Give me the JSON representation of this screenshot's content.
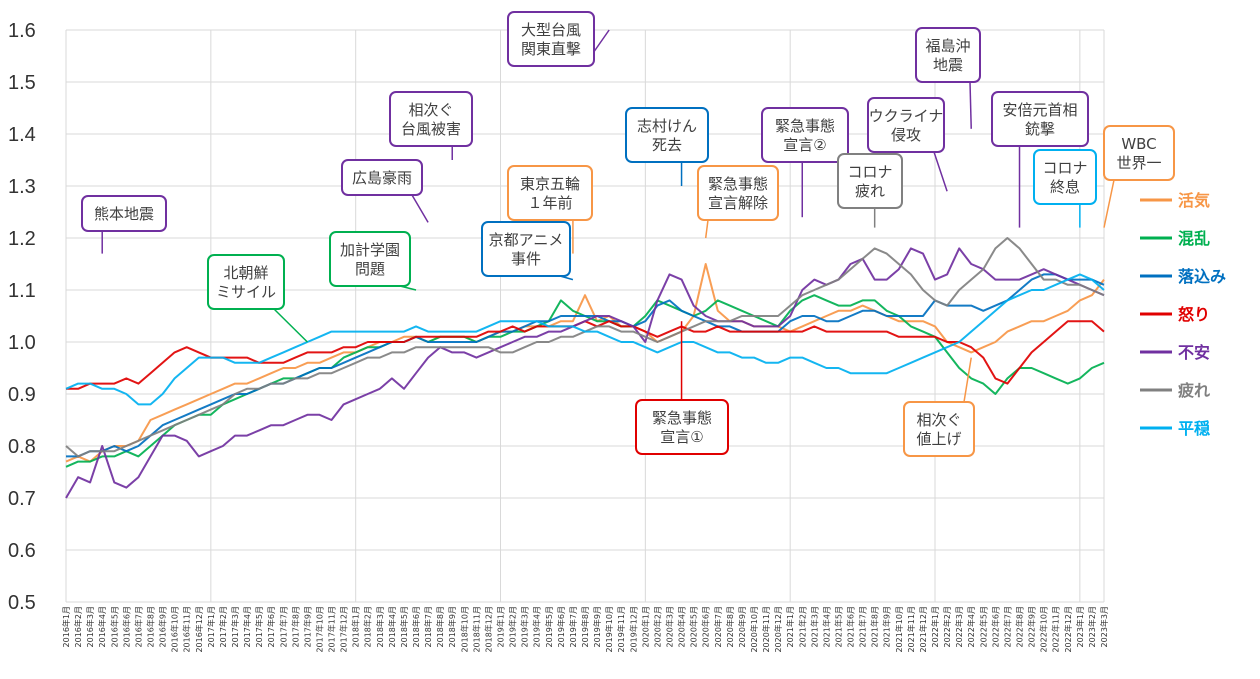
{
  "chart_data": {
    "type": "line",
    "title": "",
    "xlabel": "",
    "ylabel": "",
    "ylim": [
      0.5,
      1.6
    ],
    "yticks": [
      "0.5",
      "0.6",
      "0.7",
      "0.8",
      "0.9",
      "1.0",
      "1.1",
      "1.2",
      "1.3",
      "1.4",
      "1.5",
      "1.6"
    ],
    "grid": true,
    "legend_position": "right",
    "x_labels": [
      "2016年1月",
      "2016年2月",
      "2016年3月",
      "2016年4月",
      "2016年5月",
      "2016年6月",
      "2016年7月",
      "2016年8月",
      "2016年9月",
      "2016年10月",
      "2016年11月",
      "2016年12月",
      "2017年1月",
      "2017年2月",
      "2017年3月",
      "2017年4月",
      "2017年5月",
      "2017年6月",
      "2017年7月",
      "2017年8月",
      "2017年9月",
      "2017年10月",
      "2017年11月",
      "2017年12月",
      "2018年1月",
      "2018年2月",
      "2018年3月",
      "2018年4月",
      "2018年5月",
      "2018年6月",
      "2018年7月",
      "2018年8月",
      "2018年9月",
      "2018年10月",
      "2018年11月",
      "2018年12月",
      "2019年1月",
      "2019年2月",
      "2019年3月",
      "2019年4月",
      "2019年5月",
      "2019年6月",
      "2019年7月",
      "2019年8月",
      "2019年9月",
      "2019年10月",
      "2019年11月",
      "2019年12月",
      "2020年1月",
      "2020年2月",
      "2020年3月",
      "2020年4月",
      "2020年5月",
      "2020年6月",
      "2020年7月",
      "2020年8月",
      "2020年9月",
      "2020年10月",
      "2020年11月",
      "2020年12月",
      "2021年1月",
      "2021年2月",
      "2021年3月",
      "2021年4月",
      "2021年5月",
      "2021年6月",
      "2021年7月",
      "2021年8月",
      "2021年9月",
      "2021年10月",
      "2021年11月",
      "2021年12月",
      "2022年1月",
      "2022年2月",
      "2022年3月",
      "2022年4月",
      "2022年5月",
      "2022年6月",
      "2022年7月",
      "2022年8月",
      "2022年9月",
      "2022年10月",
      "2022年11月",
      "2022年12月",
      "2023年1月",
      "2023年2月",
      "2023年3月"
    ],
    "series": [
      {
        "name": "活気",
        "color": "#f79646",
        "values": [
          0.77,
          0.78,
          0.77,
          0.79,
          0.8,
          0.8,
          0.81,
          0.85,
          0.86,
          0.87,
          0.88,
          0.89,
          0.9,
          0.91,
          0.92,
          0.92,
          0.93,
          0.94,
          0.95,
          0.95,
          0.96,
          0.96,
          0.97,
          0.98,
          0.98,
          0.99,
          1.0,
          1.0,
          1.01,
          1.01,
          1.0,
          1.01,
          1.01,
          1.01,
          1.0,
          1.01,
          1.02,
          1.02,
          1.03,
          1.03,
          1.03,
          1.04,
          1.04,
          1.09,
          1.04,
          1.05,
          1.03,
          1.03,
          1.02,
          1.0,
          1.01,
          1.02,
          1.05,
          1.15,
          1.06,
          1.04,
          1.04,
          1.03,
          1.03,
          1.03,
          1.02,
          1.03,
          1.04,
          1.05,
          1.06,
          1.06,
          1.07,
          1.06,
          1.05,
          1.04,
          1.04,
          1.04,
          1.03,
          1.0,
          0.99,
          0.98,
          0.99,
          1.0,
          1.02,
          1.03,
          1.04,
          1.04,
          1.05,
          1.06,
          1.08,
          1.09,
          1.12
        ]
      },
      {
        "name": "混乱",
        "color": "#00b050",
        "values": [
          0.76,
          0.77,
          0.77,
          0.78,
          0.78,
          0.79,
          0.78,
          0.8,
          0.82,
          0.84,
          0.85,
          0.86,
          0.86,
          0.88,
          0.89,
          0.9,
          0.91,
          0.92,
          0.93,
          0.93,
          0.94,
          0.95,
          0.95,
          0.97,
          0.98,
          0.99,
          0.99,
          1.0,
          1.0,
          1.01,
          1.0,
          1.01,
          1.01,
          1.01,
          1.0,
          1.01,
          1.01,
          1.02,
          1.02,
          1.03,
          1.04,
          1.08,
          1.06,
          1.05,
          1.04,
          1.04,
          1.03,
          1.03,
          1.05,
          1.08,
          1.07,
          1.06,
          1.05,
          1.06,
          1.08,
          1.07,
          1.06,
          1.05,
          1.04,
          1.03,
          1.06,
          1.08,
          1.09,
          1.08,
          1.07,
          1.07,
          1.08,
          1.08,
          1.06,
          1.05,
          1.03,
          1.02,
          1.01,
          0.98,
          0.95,
          0.93,
          0.92,
          0.9,
          0.93,
          0.95,
          0.95,
          0.94,
          0.93,
          0.92,
          0.93,
          0.95,
          0.96
        ]
      },
      {
        "name": "落込み",
        "color": "#0070c0",
        "values": [
          0.78,
          0.78,
          0.79,
          0.79,
          0.8,
          0.79,
          0.8,
          0.82,
          0.84,
          0.85,
          0.86,
          0.87,
          0.88,
          0.89,
          0.9,
          0.9,
          0.91,
          0.92,
          0.92,
          0.93,
          0.94,
          0.95,
          0.95,
          0.96,
          0.97,
          0.98,
          0.99,
          1.0,
          1.0,
          1.01,
          1.0,
          1.0,
          1.0,
          1.0,
          1.0,
          1.01,
          1.02,
          1.02,
          1.03,
          1.04,
          1.04,
          1.05,
          1.05,
          1.05,
          1.05,
          1.04,
          1.04,
          1.03,
          1.04,
          1.07,
          1.08,
          1.06,
          1.05,
          1.04,
          1.03,
          1.03,
          1.02,
          1.02,
          1.02,
          1.02,
          1.04,
          1.05,
          1.05,
          1.04,
          1.04,
          1.05,
          1.06,
          1.06,
          1.05,
          1.05,
          1.05,
          1.05,
          1.08,
          1.07,
          1.07,
          1.07,
          1.06,
          1.07,
          1.08,
          1.1,
          1.12,
          1.13,
          1.13,
          1.12,
          1.12,
          1.12,
          1.11
        ]
      },
      {
        "name": "怒り",
        "color": "#e00000",
        "values": [
          0.91,
          0.91,
          0.92,
          0.92,
          0.92,
          0.93,
          0.92,
          0.94,
          0.96,
          0.98,
          0.99,
          0.98,
          0.97,
          0.97,
          0.97,
          0.97,
          0.96,
          0.96,
          0.96,
          0.97,
          0.98,
          0.98,
          0.98,
          0.99,
          0.99,
          1.0,
          1.0,
          1.0,
          1.0,
          1.01,
          1.01,
          1.01,
          1.01,
          1.01,
          1.01,
          1.02,
          1.02,
          1.03,
          1.02,
          1.03,
          1.03,
          1.03,
          1.03,
          1.04,
          1.03,
          1.04,
          1.03,
          1.03,
          1.02,
          1.01,
          1.02,
          1.03,
          1.02,
          1.02,
          1.03,
          1.02,
          1.02,
          1.02,
          1.02,
          1.02,
          1.02,
          1.02,
          1.03,
          1.02,
          1.02,
          1.02,
          1.02,
          1.02,
          1.02,
          1.01,
          1.01,
          1.01,
          1.01,
          1.0,
          1.0,
          0.99,
          0.97,
          0.93,
          0.92,
          0.95,
          0.98,
          1.0,
          1.02,
          1.04,
          1.04,
          1.04,
          1.02
        ]
      },
      {
        "name": "不安",
        "color": "#7030a0",
        "values": [
          0.7,
          0.74,
          0.73,
          0.8,
          0.73,
          0.72,
          0.74,
          0.78,
          0.82,
          0.82,
          0.81,
          0.78,
          0.79,
          0.8,
          0.82,
          0.82,
          0.83,
          0.84,
          0.84,
          0.85,
          0.86,
          0.86,
          0.85,
          0.88,
          0.89,
          0.9,
          0.91,
          0.93,
          0.91,
          0.94,
          0.97,
          0.99,
          0.98,
          0.98,
          0.97,
          0.98,
          0.99,
          1.0,
          1.01,
          1.01,
          1.02,
          1.02,
          1.03,
          1.04,
          1.05,
          1.05,
          1.04,
          1.03,
          1.0,
          1.08,
          1.13,
          1.12,
          1.07,
          1.05,
          1.04,
          1.04,
          1.04,
          1.03,
          1.03,
          1.03,
          1.05,
          1.1,
          1.12,
          1.11,
          1.12,
          1.15,
          1.16,
          1.12,
          1.12,
          1.14,
          1.18,
          1.17,
          1.12,
          1.13,
          1.18,
          1.15,
          1.14,
          1.12,
          1.12,
          1.12,
          1.13,
          1.14,
          1.13,
          1.12,
          1.11,
          1.1,
          1.09
        ]
      },
      {
        "name": "疲れ",
        "color": "#808080",
        "values": [
          0.8,
          0.78,
          0.79,
          0.79,
          0.79,
          0.8,
          0.81,
          0.82,
          0.83,
          0.84,
          0.85,
          0.86,
          0.87,
          0.88,
          0.9,
          0.91,
          0.91,
          0.92,
          0.92,
          0.93,
          0.93,
          0.94,
          0.94,
          0.95,
          0.96,
          0.97,
          0.97,
          0.98,
          0.98,
          0.99,
          0.99,
          0.99,
          0.99,
          0.99,
          0.99,
          0.99,
          0.98,
          0.98,
          0.99,
          1.0,
          1.0,
          1.01,
          1.01,
          1.02,
          1.03,
          1.03,
          1.02,
          1.02,
          1.01,
          1.0,
          1.01,
          1.02,
          1.03,
          1.04,
          1.04,
          1.04,
          1.05,
          1.05,
          1.05,
          1.05,
          1.07,
          1.09,
          1.1,
          1.11,
          1.12,
          1.14,
          1.16,
          1.18,
          1.17,
          1.15,
          1.13,
          1.1,
          1.08,
          1.07,
          1.1,
          1.12,
          1.14,
          1.18,
          1.2,
          1.18,
          1.15,
          1.12,
          1.12,
          1.11,
          1.11,
          1.1,
          1.09
        ]
      },
      {
        "name": "平穏",
        "color": "#00b0f0",
        "values": [
          0.91,
          0.92,
          0.92,
          0.91,
          0.91,
          0.9,
          0.88,
          0.88,
          0.9,
          0.93,
          0.95,
          0.97,
          0.97,
          0.97,
          0.96,
          0.96,
          0.96,
          0.97,
          0.98,
          0.99,
          1.0,
          1.01,
          1.02,
          1.02,
          1.02,
          1.02,
          1.02,
          1.02,
          1.02,
          1.03,
          1.02,
          1.02,
          1.02,
          1.02,
          1.02,
          1.03,
          1.04,
          1.04,
          1.04,
          1.04,
          1.03,
          1.03,
          1.03,
          1.02,
          1.02,
          1.01,
          1.0,
          1.0,
          0.99,
          0.98,
          0.99,
          1.0,
          1.0,
          0.99,
          0.98,
          0.98,
          0.97,
          0.97,
          0.96,
          0.96,
          0.97,
          0.97,
          0.96,
          0.95,
          0.95,
          0.94,
          0.94,
          0.94,
          0.94,
          0.95,
          0.96,
          0.97,
          0.98,
          0.99,
          1.0,
          1.02,
          1.04,
          1.06,
          1.08,
          1.09,
          1.1,
          1.1,
          1.11,
          1.12,
          1.13,
          1.12,
          1.1
        ]
      }
    ],
    "annotations": [
      {
        "label": "熊本地震",
        "color": "#7030a0",
        "series": "不安",
        "x": 3,
        "y": 1.17
      },
      {
        "label": "北朝鮮\nミサイル",
        "color": "#00b050",
        "series": "混乱",
        "x": 20,
        "y": 1.0
      },
      {
        "label": "加計学園\n問題",
        "color": "#00b050",
        "series": "混乱",
        "x": 29,
        "y": 1.1
      },
      {
        "label": "広島豪雨",
        "color": "#7030a0",
        "series": "不安",
        "x": 30,
        "y": 1.23
      },
      {
        "label": "相次ぐ\n台風被害",
        "color": "#7030a0",
        "series": "不安",
        "x": 32,
        "y": 1.35
      },
      {
        "label": "京都アニメ\n事件",
        "color": "#0070c0",
        "series": "落込み",
        "x": 42,
        "y": 1.12
      },
      {
        "label": "東京五輪\n１年前",
        "color": "#f79646",
        "series": "活気",
        "x": 42,
        "y": 1.17
      },
      {
        "label": "大型台風\n関東直撃",
        "color": "#7030a0",
        "series": "不安",
        "x": 45,
        "y": 1.6
      },
      {
        "label": "緊急事態\n宣言①",
        "color": "#e00000",
        "series": "怒り",
        "x": 51,
        "y": 1.04
      },
      {
        "label": "志村けん\n死去",
        "color": "#0070c0",
        "series": "落込み",
        "x": 51,
        "y": 1.3
      },
      {
        "label": "緊急事態\n宣言解除",
        "color": "#f79646",
        "series": "活気",
        "x": 53,
        "y": 1.2
      },
      {
        "label": "緊急事態\n宣言②",
        "color": "#7030a0",
        "series": "不安",
        "x": 61,
        "y": 1.24
      },
      {
        "label": "コロナ\n疲れ",
        "color": "#808080",
        "series": "疲れ",
        "x": 67,
        "y": 1.22
      },
      {
        "label": "ウクライナ\n侵攻",
        "color": "#7030a0",
        "series": "不安",
        "x": 73,
        "y": 1.29
      },
      {
        "label": "福島沖\n地震",
        "color": "#7030a0",
        "series": "不安",
        "x": 75,
        "y": 1.41
      },
      {
        "label": "相次ぐ\n値上げ",
        "color": "#f79646",
        "series": "活気",
        "x": 75,
        "y": 0.97
      },
      {
        "label": "安倍元首相\n銃撃",
        "color": "#7030a0",
        "series": "不安",
        "x": 79,
        "y": 1.22
      },
      {
        "label": "コロナ\n終息",
        "color": "#00b0f0",
        "series": "平穏",
        "x": 84,
        "y": 1.22
      },
      {
        "label": "WBC\n世界一",
        "color": "#f79646",
        "series": "活気",
        "x": 86,
        "y": 1.22
      }
    ]
  }
}
